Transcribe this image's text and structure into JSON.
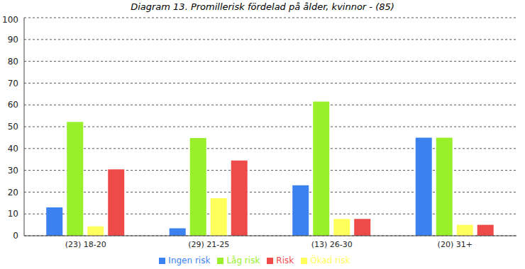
{
  "chart_data": {
    "type": "bar",
    "title": "Diagram 13. Promillerisk fördelad på ålder, kvinnor - (85)",
    "categories": [
      "(23) 18-20",
      "(29) 21-25",
      "(13) 26-30",
      "(20) 31+"
    ],
    "series": [
      {
        "name": "Ingen risk",
        "color": "#3b82f0",
        "values": [
          13,
          3.4,
          23.1,
          45
        ]
      },
      {
        "name": "Låg risk",
        "color": "#99f02a",
        "values": [
          52.2,
          44.8,
          61.5,
          45
        ]
      },
      {
        "name": "Ökad risk",
        "color": "#ffff5c",
        "values": [
          4.3,
          17.2,
          7.7,
          5
        ]
      },
      {
        "name": "Risk",
        "color": "#ee4a4a",
        "values": [
          30.4,
          34.5,
          7.7,
          5
        ]
      }
    ],
    "ylim": [
      0,
      100
    ],
    "yticks": [
      0,
      10,
      20,
      30,
      40,
      50,
      60,
      70,
      80,
      90,
      100
    ],
    "grid": true,
    "legend": "bottom"
  }
}
